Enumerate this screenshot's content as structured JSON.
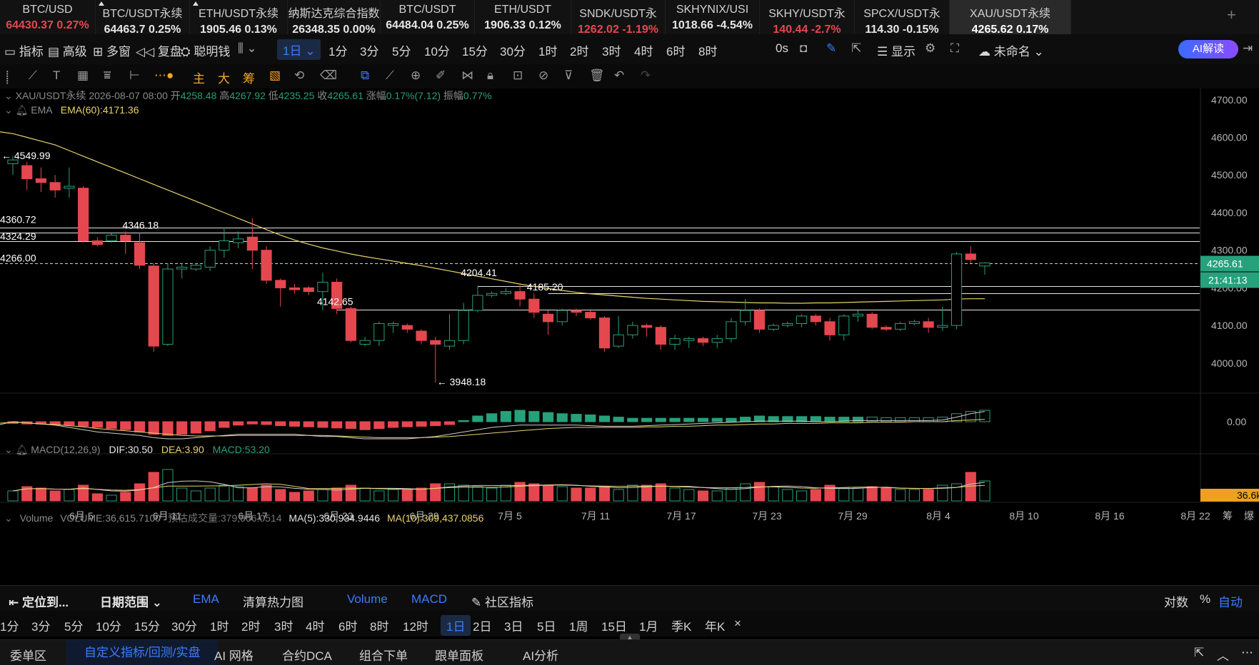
{
  "tickers": [
    {
      "name": "BTC/USD",
      "price": "64430.37",
      "change": "0.27%",
      "dir": "down",
      "pinned": false
    },
    {
      "name": "BTC/USDT永续",
      "price": "64463.7",
      "change": "0.25%",
      "dir": "up",
      "pinned": true
    },
    {
      "name": "ETH/USDT永续",
      "price": "1905.46",
      "change": "0.13%",
      "dir": "up",
      "pinned": true
    },
    {
      "name": "纳斯达克综合指数",
      "price": "26348.35",
      "change": "0.00%",
      "dir": "up",
      "pinned": false
    },
    {
      "name": "BTC/USDT",
      "price": "64484.04",
      "change": "0.25%",
      "dir": "up",
      "pinned": false
    },
    {
      "name": "ETH/USDT",
      "price": "1906.33",
      "change": "0.12%",
      "dir": "up",
      "pinned": false
    },
    {
      "name": "SNDK/USDT永",
      "price": "1262.02",
      "change": "-1.19%",
      "dir": "down",
      "pinned": false
    },
    {
      "name": "SKHYNIX/USI",
      "price": "1018.66",
      "change": "-4.54%",
      "dir": "up",
      "pinned": false
    },
    {
      "name": "SKHY/USDT永",
      "price": "140.44",
      "change": "-2.7%",
      "dir": "down",
      "pinned": false
    },
    {
      "name": "SPCX/USDT永",
      "price": "114.30",
      "change": "-0.15%",
      "dir": "up",
      "pinned": false
    },
    {
      "name": "XAU/USDT永续",
      "price": "4265.62",
      "change": "0.17%",
      "dir": "up",
      "pinned": false,
      "active": true
    }
  ],
  "toolbar": {
    "indicators": "指标",
    "advanced": "高级",
    "multiwindow": "多窗",
    "replay": "复盘",
    "smart_money": "聪明钱",
    "interval_selected": "1日",
    "intervals": [
      "1分",
      "3分",
      "5分",
      "10分",
      "15分",
      "30分",
      "1时",
      "2时",
      "3时",
      "4时",
      "6时",
      "8时"
    ],
    "countdown": "0s",
    "display": "显示",
    "layout_name": "未命名",
    "ai_button": "AI解读"
  },
  "draw_tools_cn": [
    "主",
    "大",
    "筹"
  ],
  "chart": {
    "info_symbol": "XAU/USDT永续",
    "info_date": "2026-08-07 08:00",
    "open_label": "开",
    "open": "4258.48",
    "high_label": "高",
    "high": "4267.92",
    "low_label": "低",
    "low": "4235.25",
    "close_label": "收",
    "close": "4265.61",
    "chg_label": "涨幅",
    "chg": "0.17%(7.12)",
    "amp_label": "振幅",
    "amp": "0.77%",
    "ema_name": "EMA",
    "ema_value": "EMA(60):4171.36",
    "macd_name": "MACD(12,26,9)",
    "dif": "DIF:30.50",
    "dea": "DEA:3.90",
    "macd": "MACD:53.20",
    "vol_name": "Volume",
    "vol_value": "VOLUME:36,615.7100",
    "vol_est": "预估成交量:379,966.0514",
    "ma5": "MA(5):330,934.9446",
    "ma10": "MA(10):309,437.0856",
    "price_axis": [
      "4700.00",
      "4600.00",
      "4500.00",
      "4400.00",
      "4300.00",
      "4200.00",
      "4100.00",
      "4000.00"
    ],
    "macd_axis": "0.00",
    "last_price": "4265.61",
    "countdown": "21:41:13",
    "vol_tag": "36.6k",
    "date_axis": [
      "6月 5",
      "6月 11",
      "6月 17",
      "6月 23",
      "6月 29",
      "7月 5",
      "7月 11",
      "7月 17",
      "7月 23",
      "7月 29",
      "8月 4",
      "8月 10",
      "8月 16",
      "8月 22"
    ],
    "price_labels": [
      "4549.99",
      "4360.72",
      "4324.29",
      "4266.00",
      "4346.18",
      "4142.65",
      "4204.41",
      "4185.20",
      "3948.18"
    ],
    "axis_corner": [
      "筹",
      "爆"
    ]
  },
  "bar1": {
    "locate": "定位到...",
    "date_range": "日期范围",
    "ema": "EMA",
    "heatmap": "清算热力图",
    "volume": "Volume",
    "macd": "MACD",
    "community": "社区指标",
    "log": "对数",
    "pct": "%",
    "auto": "自动"
  },
  "bar2": {
    "intervals": [
      "1分",
      "3分",
      "5分",
      "10分",
      "15分",
      "30分",
      "1时",
      "2时",
      "3时",
      "4时",
      "6时",
      "8时",
      "12时",
      "1日",
      "2日",
      "3日",
      "5日",
      "1周",
      "15日",
      "1月",
      "季K",
      "年K"
    ],
    "selected": "1日",
    "close": "×"
  },
  "bar3": {
    "tabs": [
      "委单区",
      "自定义指标/回测/实盘",
      "AI 网格",
      "合约DCA",
      "组合下单",
      "跟单面板",
      "AI分析"
    ],
    "selected": "自定义指标/回测/实盘"
  },
  "colors": {
    "up": "#26a17b",
    "down": "#e5474f",
    "accent": "#3d7bff",
    "ema": "#e8d36c",
    "bg": "#000000"
  },
  "chart_data": {
    "type": "candlestick",
    "symbol": "XAU/USDT永续",
    "interval": "1日",
    "ylim": [
      3920,
      4730
    ],
    "candles": [
      {
        "o": 4530,
        "h": 4550,
        "l": 4500,
        "c": 4540
      },
      {
        "o": 4525,
        "h": 4535,
        "l": 4460,
        "c": 4490
      },
      {
        "o": 4490,
        "h": 4520,
        "l": 4455,
        "c": 4480
      },
      {
        "o": 4480,
        "h": 4500,
        "l": 4440,
        "c": 4460
      },
      {
        "o": 4465,
        "h": 4520,
        "l": 4440,
        "c": 4470
      },
      {
        "o": 4465,
        "h": 4470,
        "l": 4320,
        "c": 4325
      },
      {
        "o": 4325,
        "h": 4335,
        "l": 4310,
        "c": 4315
      },
      {
        "o": 4325,
        "h": 4345,
        "l": 4320,
        "c": 4340
      },
      {
        "o": 4340,
        "h": 4350,
        "l": 4290,
        "c": 4325
      },
      {
        "o": 4320,
        "h": 4346,
        "l": 4250,
        "c": 4260
      },
      {
        "o": 4258,
        "h": 4265,
        "l": 4030,
        "c": 4045
      },
      {
        "o": 4050,
        "h": 4265,
        "l": 4045,
        "c": 4250
      },
      {
        "o": 4250,
        "h": 4265,
        "l": 4225,
        "c": 4255
      },
      {
        "o": 4250,
        "h": 4265,
        "l": 4245,
        "c": 4260
      },
      {
        "o": 4255,
        "h": 4310,
        "l": 4245,
        "c": 4300
      },
      {
        "o": 4300,
        "h": 4360,
        "l": 4280,
        "c": 4325
      },
      {
        "o": 4320,
        "h": 4350,
        "l": 4305,
        "c": 4330
      },
      {
        "o": 4335,
        "h": 4385,
        "l": 4250,
        "c": 4300
      },
      {
        "o": 4300,
        "h": 4310,
        "l": 4210,
        "c": 4220
      },
      {
        "o": 4220,
        "h": 4225,
        "l": 4150,
        "c": 4200
      },
      {
        "o": 4200,
        "h": 4210,
        "l": 4185,
        "c": 4195
      },
      {
        "o": 4200,
        "h": 4205,
        "l": 4180,
        "c": 4190
      },
      {
        "o": 4190,
        "h": 4240,
        "l": 4140,
        "c": 4215
      },
      {
        "o": 4215,
        "h": 4225,
        "l": 4130,
        "c": 4145
      },
      {
        "o": 4145,
        "h": 4150,
        "l": 4055,
        "c": 4060
      },
      {
        "o": 4050,
        "h": 4070,
        "l": 4045,
        "c": 4060
      },
      {
        "o": 4060,
        "h": 4110,
        "l": 4045,
        "c": 4105
      },
      {
        "o": 4100,
        "h": 4110,
        "l": 4080,
        "c": 4105
      },
      {
        "o": 4100,
        "h": 4105,
        "l": 4080,
        "c": 4090
      },
      {
        "o": 4085,
        "h": 4090,
        "l": 4050,
        "c": 4060
      },
      {
        "o": 4060,
        "h": 4070,
        "l": 3948,
        "c": 4050
      },
      {
        "o": 4045,
        "h": 4130,
        "l": 4035,
        "c": 4060
      },
      {
        "o": 4060,
        "h": 4160,
        "l": 4050,
        "c": 4140
      },
      {
        "o": 4140,
        "h": 4205,
        "l": 4135,
        "c": 4180
      },
      {
        "o": 4180,
        "h": 4190,
        "l": 4175,
        "c": 4185
      },
      {
        "o": 4185,
        "h": 4200,
        "l": 4180,
        "c": 4190
      },
      {
        "o": 4190,
        "h": 4210,
        "l": 4150,
        "c": 4170
      },
      {
        "o": 4170,
        "h": 4185,
        "l": 4120,
        "c": 4135
      },
      {
        "o": 4130,
        "h": 4140,
        "l": 4075,
        "c": 4110
      },
      {
        "o": 4110,
        "h": 4145,
        "l": 4100,
        "c": 4140
      },
      {
        "o": 4140,
        "h": 4145,
        "l": 4125,
        "c": 4135
      },
      {
        "o": 4135,
        "h": 4140,
        "l": 4115,
        "c": 4120
      },
      {
        "o": 4120,
        "h": 4125,
        "l": 4030,
        "c": 4040
      },
      {
        "o": 4045,
        "h": 4125,
        "l": 4040,
        "c": 4075
      },
      {
        "o": 4075,
        "h": 4110,
        "l": 4065,
        "c": 4100
      },
      {
        "o": 4100,
        "h": 4105,
        "l": 4070,
        "c": 4095
      },
      {
        "o": 4095,
        "h": 4100,
        "l": 4035,
        "c": 4050
      },
      {
        "o": 4050,
        "h": 4075,
        "l": 4035,
        "c": 4065
      },
      {
        "o": 4060,
        "h": 4070,
        "l": 4040,
        "c": 4065
      },
      {
        "o": 4065,
        "h": 4070,
        "l": 4045,
        "c": 4055
      },
      {
        "o": 4055,
        "h": 4075,
        "l": 4040,
        "c": 4065
      },
      {
        "o": 4065,
        "h": 4120,
        "l": 4055,
        "c": 4110
      },
      {
        "o": 4110,
        "h": 4170,
        "l": 4100,
        "c": 4140
      },
      {
        "o": 4140,
        "h": 4145,
        "l": 4080,
        "c": 4090
      },
      {
        "o": 4090,
        "h": 4105,
        "l": 4085,
        "c": 4100
      },
      {
        "o": 4100,
        "h": 4110,
        "l": 4095,
        "c": 4105
      },
      {
        "o": 4105,
        "h": 4130,
        "l": 4095,
        "c": 4125
      },
      {
        "o": 4125,
        "h": 4130,
        "l": 4100,
        "c": 4110
      },
      {
        "o": 4110,
        "h": 4120,
        "l": 4060,
        "c": 4075
      },
      {
        "o": 4075,
        "h": 4130,
        "l": 4060,
        "c": 4125
      },
      {
        "o": 4125,
        "h": 4140,
        "l": 4110,
        "c": 4130
      },
      {
        "o": 4130,
        "h": 4135,
        "l": 4090,
        "c": 4095
      },
      {
        "o": 4095,
        "h": 4100,
        "l": 4085,
        "c": 4090
      },
      {
        "o": 4090,
        "h": 4110,
        "l": 4085,
        "c": 4105
      },
      {
        "o": 4105,
        "h": 4115,
        "l": 4100,
        "c": 4110
      },
      {
        "o": 4110,
        "h": 4120,
        "l": 4080,
        "c": 4095
      },
      {
        "o": 4095,
        "h": 4150,
        "l": 4085,
        "c": 4100
      },
      {
        "o": 4100,
        "h": 4295,
        "l": 4090,
        "c": 4290
      },
      {
        "o": 4290,
        "h": 4310,
        "l": 4265,
        "c": 4275
      },
      {
        "o": 4258,
        "h": 4268,
        "l": 4235,
        "c": 4266
      }
    ],
    "ema60": [
      4610,
      4600,
      4590,
      4580,
      4565,
      4550,
      4535,
      4520,
      4505,
      4490,
      4475,
      4460,
      4445,
      4430,
      4415,
      4400,
      4385,
      4370,
      4355,
      4340,
      4327,
      4316,
      4306,
      4298,
      4290,
      4283,
      4277,
      4271,
      4265,
      4259,
      4252,
      4245,
      4238,
      4231,
      4224,
      4217,
      4210,
      4204,
      4198,
      4193,
      4188,
      4184,
      4181,
      4178,
      4175,
      4172,
      4170,
      4168,
      4166,
      4164,
      4163,
      4162,
      4161,
      4160,
      4160,
      4159,
      4159,
      4160,
      4160,
      4161,
      4162,
      4163,
      4164,
      4165,
      4166,
      4167,
      4168,
      4170,
      4171,
      4171
    ],
    "horizontal_levels": [
      4360.72,
      4346.18,
      4324.29,
      4204.41,
      4185.2,
      4142.65
    ],
    "last_price": 4265.61
  }
}
